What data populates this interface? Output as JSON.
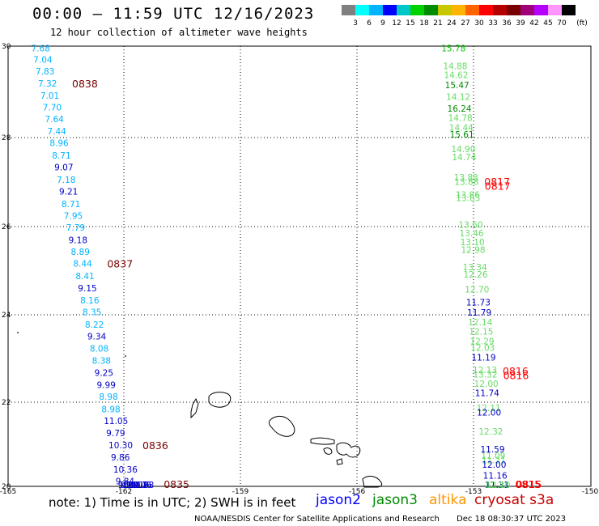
{
  "header": {
    "title": "00:00 – 11:59 UTC 12/16/2023",
    "subtitle": "12 hour collection of altimeter wave heights"
  },
  "colorbar": {
    "colors": [
      "#808080",
      "#00ffff",
      "#00b4ff",
      "#0000ff",
      "#00c8c8",
      "#00d200",
      "#008c00",
      "#c8c800",
      "#ffb400",
      "#ff6400",
      "#ff0000",
      "#b40000",
      "#780000",
      "#a00078",
      "#b400ff",
      "#ff96ff",
      "#000000"
    ],
    "labels": [
      "3",
      "6",
      "9",
      "12",
      "15",
      "18",
      "21",
      "24",
      "27",
      "30",
      "33",
      "36",
      "39",
      "42",
      "45",
      "70"
    ],
    "unit": "(ft)"
  },
  "axes": {
    "lon_labels": [
      "-165",
      "-162",
      "-159",
      "-156",
      "-153",
      "-150"
    ],
    "lat_labels": [
      "30",
      "28",
      "26",
      "24",
      "22",
      "20"
    ]
  },
  "tracks": {
    "west": {
      "points": [
        {
          "t": "7.68",
          "c": "#00b4ff",
          "lat": 29.95
        },
        {
          "t": "7.04",
          "c": "#00b4ff",
          "lat": 29.7
        },
        {
          "t": "7.83",
          "c": "#00b4ff",
          "lat": 29.43
        },
        {
          "t": "7.32",
          "c": "#00b4ff",
          "lat": 29.15
        },
        {
          "t": "7.01",
          "c": "#00b4ff",
          "lat": 28.88
        },
        {
          "t": "7.70",
          "c": "#00b4ff",
          "lat": 28.61
        },
        {
          "t": "7.64",
          "c": "#00b4ff",
          "lat": 28.35
        },
        {
          "t": "7.44",
          "c": "#00b4ff",
          "lat": 28.07
        },
        {
          "t": "8.96",
          "c": "#00b4ff",
          "lat": 27.8
        },
        {
          "t": "8.71",
          "c": "#00b4ff",
          "lat": 27.52
        },
        {
          "t": "9.07",
          "c": "#0000c8",
          "lat": 27.25
        },
        {
          "t": "7.18",
          "c": "#00b4ff",
          "lat": 26.97
        },
        {
          "t": "9.21",
          "c": "#0000c8",
          "lat": 26.7
        },
        {
          "t": "8.71",
          "c": "#00b4ff",
          "lat": 26.42
        },
        {
          "t": "7.95",
          "c": "#00b4ff",
          "lat": 26.15
        },
        {
          "t": "7.79",
          "c": "#00b4ff",
          "lat": 25.88
        },
        {
          "t": "9.18",
          "c": "#0000c8",
          "lat": 25.6
        },
        {
          "t": "8.89",
          "c": "#00b4ff",
          "lat": 25.33
        },
        {
          "t": "8.44",
          "c": "#00b4ff",
          "lat": 25.06
        },
        {
          "t": "8.41",
          "c": "#00b4ff",
          "lat": 24.78
        },
        {
          "t": "9.15",
          "c": "#0000c8",
          "lat": 24.5
        },
        {
          "t": "8.16",
          "c": "#00b4ff",
          "lat": 24.23
        },
        {
          "t": "8.35",
          "c": "#00b4ff",
          "lat": 23.96
        },
        {
          "t": "8.22",
          "c": "#00b4ff",
          "lat": 23.68
        },
        {
          "t": "9.34",
          "c": "#0000c8",
          "lat": 23.41
        },
        {
          "t": "8.08",
          "c": "#00b4ff",
          "lat": 23.13
        },
        {
          "t": "8.38",
          "c": "#00b4ff",
          "lat": 22.86
        },
        {
          "t": "9.25",
          "c": "#0000c8",
          "lat": 22.58
        },
        {
          "t": "9.99",
          "c": "#0000c8",
          "lat": 22.31
        },
        {
          "t": "8.98",
          "c": "#00b4ff",
          "lat": 22.04
        },
        {
          "t": "8.98",
          "c": "#00b4ff",
          "lat": 21.76
        },
        {
          "t": "11.05",
          "c": "#0000c8",
          "lat": 21.49
        },
        {
          "t": "9.79",
          "c": "#0000c8",
          "lat": 21.21
        },
        {
          "t": "10.30",
          "c": "#0000c8",
          "lat": 20.94
        },
        {
          "t": "9.86",
          "c": "#0000c8",
          "lat": 20.66
        },
        {
          "t": "10.36",
          "c": "#0000c8",
          "lat": 20.39
        },
        {
          "t": "9.84",
          "c": "#0000c8",
          "lat": 20.12
        },
        {
          "t": "9.94",
          "c": "#0000c8",
          "lat": 19.84
        },
        {
          "t": "9.69",
          "c": "#0000c8",
          "lat": 19.57
        },
        {
          "t": "10.17",
          "c": "#0000c8",
          "lat": 19.29
        },
        {
          "t": "10.16",
          "c": "#0000c8",
          "lat": 19.02
        },
        {
          "t": "10.46",
          "c": "#0000c8",
          "lat": 18.74
        },
        {
          "t": "10.78",
          "c": "#0000c8",
          "lat": 18.47
        }
      ],
      "times": [
        {
          "t": "0838",
          "lat": 29.15
        },
        {
          "t": "0837",
          "lat": 25.06
        },
        {
          "t": "0836",
          "lat": 20.94
        },
        {
          "t": "0835",
          "lat": 18.47
        }
      ]
    },
    "east": {
      "points": [
        {
          "t": "15.78",
          "c": "#00c800",
          "lat": 29.95
        },
        {
          "t": "14.88",
          "c": "#64dc64",
          "lat": 29.55
        },
        {
          "t": "14.62",
          "c": "#64dc64",
          "lat": 29.35
        },
        {
          "t": "15.47",
          "c": "#008c00",
          "lat": 29.12
        },
        {
          "t": "14.12",
          "c": "#64dc64",
          "lat": 28.85
        },
        {
          "t": "16.24",
          "c": "#008c00",
          "lat": 28.58
        },
        {
          "t": "14.78",
          "c": "#64dc64",
          "lat": 28.37
        },
        {
          "t": "14.44",
          "c": "#64dc64",
          "lat": 28.15
        },
        {
          "t": "15.61",
          "c": "#008c00",
          "lat": 28.0
        },
        {
          "t": "14.90",
          "c": "#64dc64",
          "lat": 27.67
        },
        {
          "t": "14.74",
          "c": "#64dc64",
          "lat": 27.48
        },
        {
          "t": "13.88",
          "c": "#64dc64",
          "lat": 27.02
        },
        {
          "t": "13.88",
          "c": "#64dc64",
          "lat": 26.92
        },
        {
          "t": "13.86",
          "c": "#64dc64",
          "lat": 26.63
        },
        {
          "t": "13.83",
          "c": "#64dc64",
          "lat": 26.55
        },
        {
          "t": "13.60",
          "c": "#64dc64",
          "lat": 25.95
        },
        {
          "t": "13.46",
          "c": "#64dc64",
          "lat": 25.75
        },
        {
          "t": "13.10",
          "c": "#64dc64",
          "lat": 25.55
        },
        {
          "t": "12.98",
          "c": "#64dc64",
          "lat": 25.38
        },
        {
          "t": "13.34",
          "c": "#64dc64",
          "lat": 24.98
        },
        {
          "t": "12.26",
          "c": "#64dc64",
          "lat": 24.82
        },
        {
          "t": "12.70",
          "c": "#64dc64",
          "lat": 24.48
        },
        {
          "t": "11.73",
          "c": "#0000c8",
          "lat": 24.18
        },
        {
          "t": "11.79",
          "c": "#0000c8",
          "lat": 23.95
        },
        {
          "t": "12.14",
          "c": "#64dc64",
          "lat": 23.73
        },
        {
          "t": "12.15",
          "c": "#64dc64",
          "lat": 23.52
        },
        {
          "t": "12.29",
          "c": "#64dc64",
          "lat": 23.3
        },
        {
          "t": "12.03",
          "c": "#64dc64",
          "lat": 23.15
        },
        {
          "t": "11.19",
          "c": "#0000c8",
          "lat": 22.93
        },
        {
          "t": "12.13",
          "c": "#64dc64",
          "lat": 22.65
        },
        {
          "t": "13.32",
          "c": "#64dc64",
          "lat": 22.55
        },
        {
          "t": "12.00",
          "c": "#64dc64",
          "lat": 22.33
        },
        {
          "t": "11.74",
          "c": "#0000c8",
          "lat": 22.12
        },
        {
          "t": "12.11",
          "c": "#64dc64",
          "lat": 21.78
        },
        {
          "t": "12.00",
          "c": "#0000c8",
          "lat": 21.68
        },
        {
          "t": "12.32",
          "c": "#64dc64",
          "lat": 21.25
        },
        {
          "t": "11.59",
          "c": "#0000c8",
          "lat": 20.85
        },
        {
          "t": "11.09",
          "c": "#64dc64",
          "lat": 20.7
        },
        {
          "t": "11.21",
          "c": "#64dc64",
          "lat": 20.6
        },
        {
          "t": "12.00",
          "c": "#0000c8",
          "lat": 20.5
        },
        {
          "t": "11.16",
          "c": "#0000c8",
          "lat": 20.25
        },
        {
          "t": "12.11",
          "c": "#64dc64",
          "lat": 19.95
        },
        {
          "t": "11.31",
          "c": "#0000c8",
          "lat": 19.75
        },
        {
          "t": "12.10",
          "c": "#64dc64",
          "lat": 19.55
        }
      ],
      "times": [
        {
          "t": "0817",
          "lat": 26.93
        },
        {
          "t": "0817",
          "lat": 26.83
        },
        {
          "t": "0816",
          "lat": 22.63
        },
        {
          "t": "0816",
          "lat": 22.53
        },
        {
          "t": "0815",
          "lat": 19.73
        },
        {
          "t": "0815",
          "lat": 19.53
        }
      ]
    }
  },
  "footer": {
    "note": "note: 1) Time is in UTC; 2) SWH is in feet",
    "sat_jason2": "jason2",
    "sat_jason3": "jason3",
    "sat_altika": "altika",
    "sat_cryosat": "cryosat s3a",
    "credit": "NOAA/NESDIS Center for Satellite Applications and Research",
    "timestamp": "Dec 18 08:30:37 UTC 2023"
  },
  "colors": {
    "jason2": "#0000ff",
    "jason3": "#008c00",
    "altika": "#ff9600",
    "cryosat": "#c80000",
    "time_west": "#780000",
    "time_east": "#ff0000"
  }
}
